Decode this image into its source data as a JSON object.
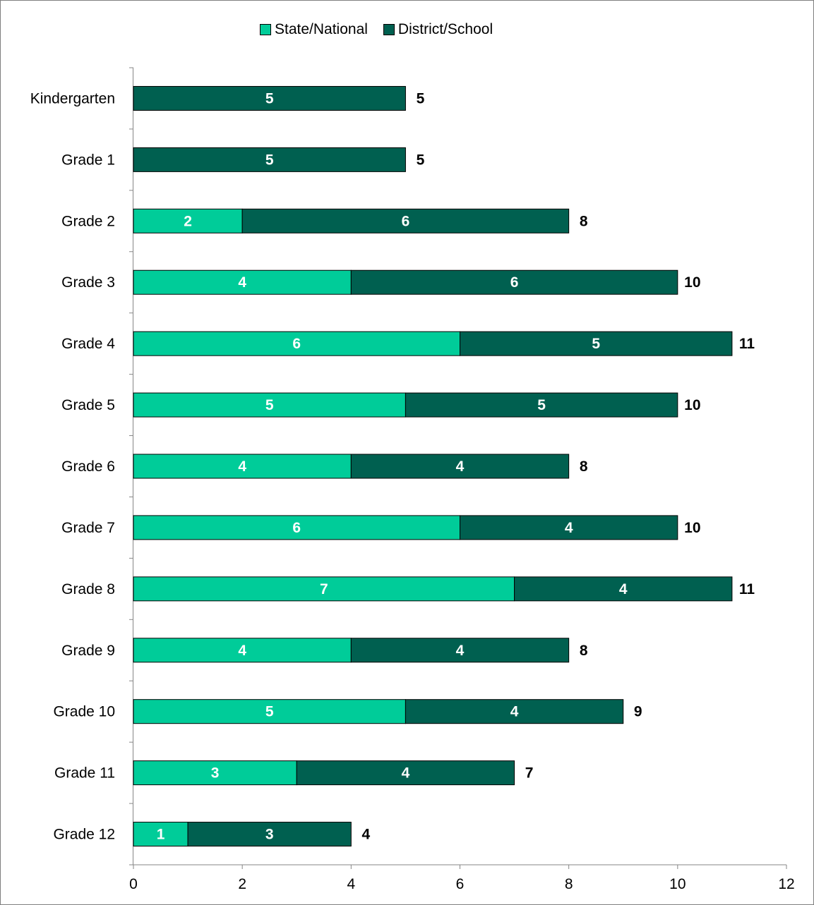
{
  "chart_data": {
    "type": "bar",
    "orientation": "horizontal",
    "stacked": true,
    "categories": [
      "Kindergarten",
      "Grade 1",
      "Grade 2",
      "Grade 3",
      "Grade 4",
      "Grade 5",
      "Grade 6",
      "Grade 7",
      "Grade 8",
      "Grade 9",
      "Grade 10",
      "Grade 11",
      "Grade 12"
    ],
    "series": [
      {
        "name": "State/National",
        "color": "#00CC99",
        "values": [
          0,
          0,
          2,
          4,
          6,
          5,
          4,
          6,
          7,
          4,
          5,
          3,
          1
        ]
      },
      {
        "name": "District/School",
        "color": "#006050",
        "values": [
          5,
          5,
          6,
          6,
          5,
          5,
          4,
          4,
          4,
          4,
          4,
          4,
          3
        ]
      }
    ],
    "totals": [
      5,
      5,
      8,
      10,
      11,
      10,
      8,
      10,
      11,
      8,
      9,
      7,
      4
    ],
    "x_ticks": [
      "0",
      "2",
      "4",
      "6",
      "8",
      "10",
      "12"
    ],
    "xlim": [
      0,
      12
    ],
    "legend_position": "top",
    "grid": false
  }
}
